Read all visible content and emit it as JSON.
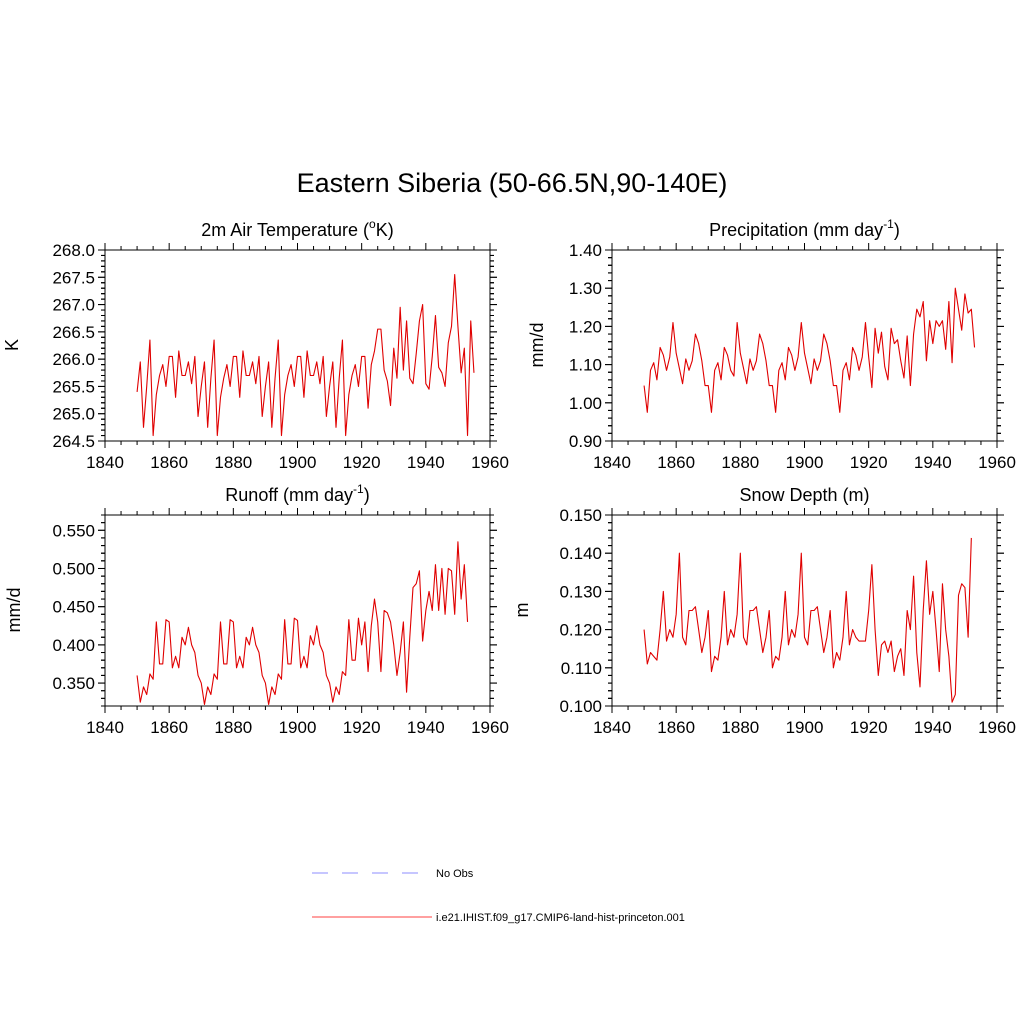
{
  "page_title": "Eastern Siberia (50-66.5N,90-140E)",
  "legend": [
    {
      "label": "No Obs",
      "color": "#8c8cff",
      "dash": true
    },
    {
      "label": "i.e21.IHIST.f09_g17.CMIP6-land-hist-princeton.001",
      "color": "#ff4040",
      "dash": false
    }
  ],
  "chart_data": [
    {
      "type": "line",
      "title": "2m Air Temperature (oK)",
      "title_main": "2m Air Temperature (",
      "title_sup": "o",
      "title_tail": "K)",
      "ylabel": "K",
      "xlim": [
        1840,
        1960
      ],
      "ylim": [
        264.5,
        268.0
      ],
      "xticks": [
        "1840",
        "1860",
        "1880",
        "1900",
        "1920",
        "1940",
        "1960"
      ],
      "yticks": [
        "264.5",
        "265.0",
        "265.5",
        "266.0",
        "266.5",
        "267.0",
        "267.5",
        "268.0"
      ],
      "series": [
        {
          "color": "#e00000",
          "x_start": 1850,
          "values": [
            265.4,
            265.95,
            264.75,
            265.5,
            266.35,
            264.6,
            265.35,
            265.7,
            265.9,
            265.5,
            266.05,
            266.05,
            265.3,
            266.15,
            265.7,
            265.7,
            265.95,
            265.55,
            266.05,
            264.95,
            265.5,
            265.95,
            264.75,
            265.65,
            266.35,
            264.6,
            265.3,
            265.65,
            265.9,
            265.5,
            266.05,
            266.05,
            265.3,
            266.15,
            265.7,
            265.7,
            265.95,
            265.55,
            266.05,
            264.95,
            265.5,
            265.95,
            264.75,
            265.65,
            266.35,
            264.6,
            265.35,
            265.7,
            265.9,
            265.5,
            266.05,
            266.05,
            265.3,
            266.15,
            265.7,
            265.7,
            265.95,
            265.55,
            266.05,
            264.95,
            265.5,
            265.95,
            264.75,
            265.65,
            266.35,
            264.6,
            265.35,
            265.7,
            265.9,
            265.5,
            266.05,
            266.05,
            265.1,
            265.9,
            266.15,
            266.55,
            266.55,
            265.8,
            265.6,
            265.15,
            266.2,
            265.65,
            266.95,
            265.8,
            266.7,
            265.65,
            265.55,
            266.1,
            266.7,
            267.0,
            265.55,
            265.45,
            266.05,
            266.8,
            265.85,
            265.75,
            265.5,
            266.3,
            266.6,
            267.55,
            266.6,
            265.75,
            266.2,
            264.6,
            266.7,
            265.75
          ]
        }
      ]
    },
    {
      "type": "line",
      "title": "Precipitation (mm day-1)",
      "title_main": "Precipitation (mm day",
      "title_sup": "-1",
      "title_tail": ")",
      "ylabel": "mm/d",
      "xlim": [
        1840,
        1960
      ],
      "ylim": [
        0.9,
        1.4
      ],
      "xticks": [
        "1840",
        "1860",
        "1880",
        "1900",
        "1920",
        "1940",
        "1960"
      ],
      "yticks": [
        "0.90",
        "1.00",
        "1.10",
        "1.20",
        "1.30",
        "1.40"
      ],
      "series": [
        {
          "color": "#e00000",
          "x_start": 1850,
          "values": [
            1.045,
            0.975,
            1.085,
            1.105,
            1.06,
            1.145,
            1.125,
            1.085,
            1.12,
            1.21,
            1.13,
            1.09,
            1.05,
            1.115,
            1.085,
            1.11,
            1.18,
            1.155,
            1.11,
            1.045,
            1.045,
            0.975,
            1.085,
            1.105,
            1.06,
            1.145,
            1.125,
            1.085,
            1.07,
            1.21,
            1.13,
            1.09,
            1.05,
            1.115,
            1.085,
            1.11,
            1.18,
            1.155,
            1.11,
            1.045,
            1.045,
            0.975,
            1.085,
            1.105,
            1.06,
            1.145,
            1.125,
            1.085,
            1.12,
            1.21,
            1.13,
            1.09,
            1.05,
            1.115,
            1.085,
            1.11,
            1.18,
            1.155,
            1.11,
            1.045,
            1.045,
            0.975,
            1.085,
            1.105,
            1.06,
            1.145,
            1.125,
            1.085,
            1.12,
            1.21,
            1.12,
            1.04,
            1.195,
            1.13,
            1.185,
            1.095,
            1.06,
            1.195,
            1.155,
            1.165,
            1.11,
            1.065,
            1.175,
            1.045,
            1.18,
            1.245,
            1.225,
            1.265,
            1.11,
            1.215,
            1.155,
            1.215,
            1.2,
            1.215,
            1.14,
            1.265,
            1.105,
            1.3,
            1.245,
            1.19,
            1.285,
            1.235,
            1.245,
            1.145
          ]
        }
      ]
    },
    {
      "type": "line",
      "title": "Runoff (mm day-1)",
      "title_main": "Runoff (mm day",
      "title_sup": "-1",
      "title_tail": ")",
      "ylabel": "mm/d",
      "xlim": [
        1840,
        1960
      ],
      "ylim": [
        0.32,
        0.57
      ],
      "xticks": [
        "1840",
        "1860",
        "1880",
        "1900",
        "1920",
        "1940",
        "1960"
      ],
      "yticks": [
        "0.350",
        "0.400",
        "0.450",
        "0.500",
        "0.550"
      ],
      "series": [
        {
          "color": "#e00000",
          "x_start": 1850,
          "values": [
            0.36,
            0.325,
            0.345,
            0.335,
            0.362,
            0.355,
            0.43,
            0.375,
            0.375,
            0.433,
            0.43,
            0.37,
            0.385,
            0.37,
            0.41,
            0.4,
            0.423,
            0.4,
            0.39,
            0.36,
            0.35,
            0.322,
            0.345,
            0.335,
            0.362,
            0.355,
            0.43,
            0.375,
            0.375,
            0.433,
            0.43,
            0.37,
            0.385,
            0.37,
            0.41,
            0.4,
            0.423,
            0.4,
            0.39,
            0.36,
            0.35,
            0.322,
            0.345,
            0.335,
            0.362,
            0.355,
            0.433,
            0.375,
            0.375,
            0.435,
            0.432,
            0.37,
            0.385,
            0.37,
            0.412,
            0.4,
            0.425,
            0.4,
            0.39,
            0.36,
            0.35,
            0.325,
            0.345,
            0.335,
            0.365,
            0.36,
            0.433,
            0.38,
            0.38,
            0.435,
            0.4,
            0.43,
            0.365,
            0.425,
            0.46,
            0.43,
            0.365,
            0.445,
            0.442,
            0.43,
            0.4,
            0.36,
            0.39,
            0.43,
            0.338,
            0.41,
            0.475,
            0.48,
            0.497,
            0.405,
            0.445,
            0.47,
            0.445,
            0.505,
            0.445,
            0.5,
            0.44,
            0.5,
            0.497,
            0.44,
            0.535,
            0.46,
            0.505,
            0.43
          ]
        }
      ]
    },
    {
      "type": "line",
      "title": "Snow Depth (m)",
      "title_main": "Snow Depth (m)",
      "title_sup": "",
      "title_tail": "",
      "ylabel": "m",
      "xlim": [
        1840,
        1960
      ],
      "ylim": [
        0.1,
        0.15
      ],
      "xticks": [
        "1840",
        "1860",
        "1880",
        "1900",
        "1920",
        "1940",
        "1960"
      ],
      "yticks": [
        "0.100",
        "0.110",
        "0.120",
        "0.130",
        "0.140",
        "0.150"
      ],
      "series": [
        {
          "color": "#e00000",
          "x_start": 1850,
          "values": [
            0.12,
            0.111,
            0.114,
            0.113,
            0.112,
            0.12,
            0.13,
            0.117,
            0.12,
            0.118,
            0.124,
            0.14,
            0.118,
            0.116,
            0.125,
            0.125,
            0.126,
            0.12,
            0.114,
            0.118,
            0.125,
            0.109,
            0.113,
            0.112,
            0.118,
            0.13,
            0.116,
            0.12,
            0.118,
            0.124,
            0.14,
            0.118,
            0.116,
            0.125,
            0.125,
            0.126,
            0.12,
            0.114,
            0.118,
            0.125,
            0.11,
            0.113,
            0.112,
            0.118,
            0.13,
            0.116,
            0.12,
            0.118,
            0.124,
            0.14,
            0.118,
            0.116,
            0.125,
            0.125,
            0.126,
            0.12,
            0.114,
            0.118,
            0.125,
            0.11,
            0.114,
            0.112,
            0.118,
            0.13,
            0.116,
            0.12,
            0.118,
            0.117,
            0.117,
            0.117,
            0.125,
            0.137,
            0.12,
            0.108,
            0.116,
            0.117,
            0.114,
            0.117,
            0.109,
            0.113,
            0.115,
            0.108,
            0.125,
            0.12,
            0.134,
            0.114,
            0.105,
            0.125,
            0.138,
            0.124,
            0.13,
            0.12,
            0.109,
            0.132,
            0.12,
            0.113,
            0.101,
            0.103,
            0.129,
            0.132,
            0.131,
            0.118,
            0.144
          ]
        }
      ]
    }
  ]
}
